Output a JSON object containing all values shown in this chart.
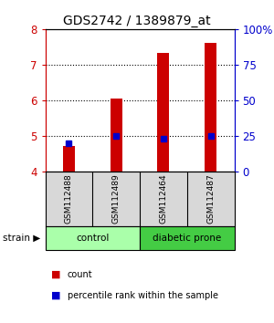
{
  "title": "GDS2742 / 1389879_at",
  "samples": [
    "GSM112488",
    "GSM112489",
    "GSM112464",
    "GSM112487"
  ],
  "red_values": [
    4.72,
    6.05,
    7.32,
    7.62
  ],
  "blue_pct": [
    20,
    25,
    23,
    25
  ],
  "ymin": 4,
  "ymax": 8,
  "yticks": [
    4,
    5,
    6,
    7,
    8
  ],
  "right_ytick_labels": [
    "0",
    "25",
    "50",
    "75",
    "100%"
  ],
  "groups": [
    {
      "label": "control",
      "indices": [
        0,
        1
      ],
      "color": "#aaffaa"
    },
    {
      "label": "diabetic prone",
      "indices": [
        2,
        3
      ],
      "color": "#44cc44"
    }
  ],
  "bar_color": "#cc0000",
  "dot_color": "#0000cc",
  "bar_width": 0.25,
  "left_tick_color": "#cc0000",
  "right_tick_color": "#0000cc",
  "title_fontsize": 10,
  "legend_items": [
    {
      "color": "#cc0000",
      "marker": "s",
      "label": "count"
    },
    {
      "color": "#0000cc",
      "marker": "s",
      "label": "percentile rank within the sample"
    }
  ],
  "strain_label": "strain",
  "sample_bg_color": "#d8d8d8"
}
